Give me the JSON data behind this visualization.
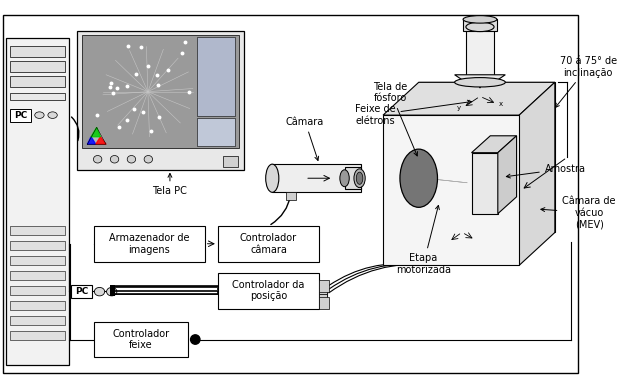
{
  "bg_color": "#ffffff",
  "labels": {
    "tela_pc": "Tela PC",
    "feixe_eletrons": "Feixe de\nelétrons",
    "inclinacao": "70 á 75° de\ninclinação",
    "tela_fosforo": "Tela de\nfósforo",
    "camera": "Câmara",
    "etapa_motorizada": "Etapa\nmotorizada",
    "amostra": "Amostra",
    "armazenador": "Armazenador de\nimagens",
    "controlador_camera": "Controlador\ncâmara",
    "controlador_posicao": "Controlador da\nposição",
    "camera_vacuo": "Câmara de\nvácuo\n(MEV)",
    "controlador_feixe": "Controlador\nfeixe",
    "pc": "PC"
  },
  "fontsize": 7.0
}
